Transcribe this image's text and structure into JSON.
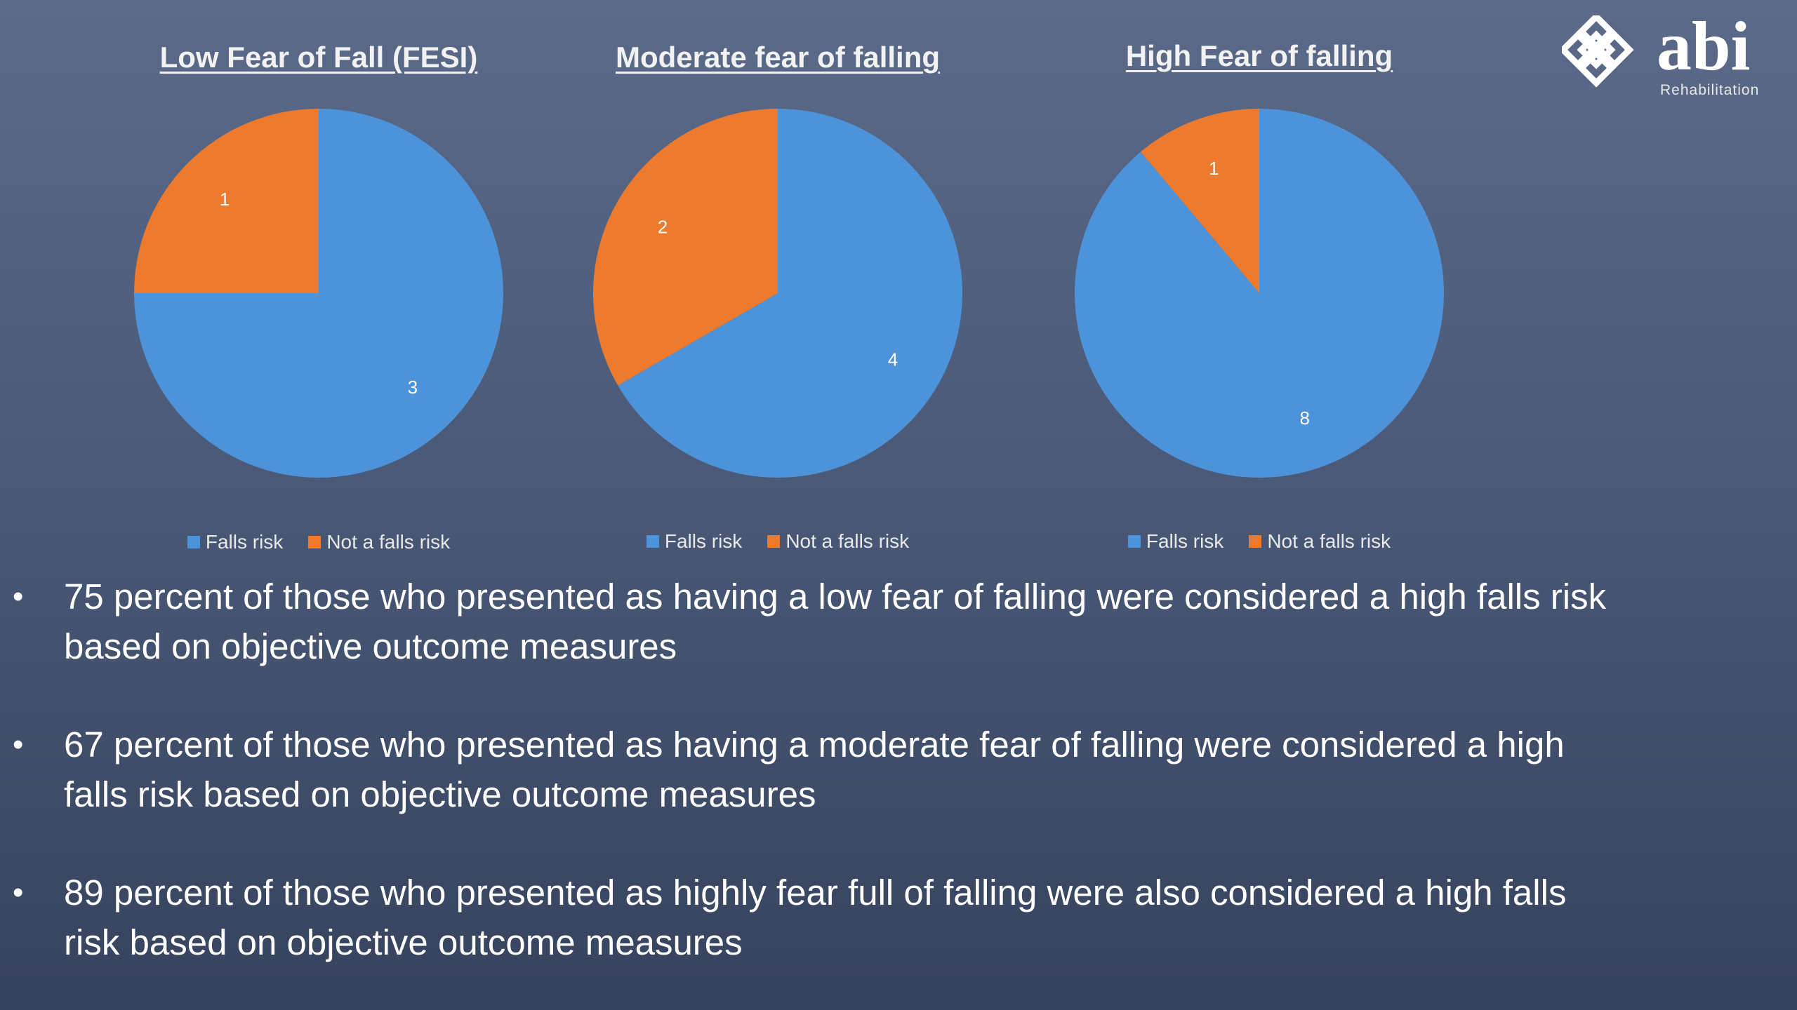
{
  "logo": {
    "word": "abi",
    "subtitle": "Rehabilitation"
  },
  "colors": {
    "falls_risk": "#4d93d9",
    "not_falls_risk": "#ee7a2e"
  },
  "chart_data": [
    {
      "type": "pie",
      "title": "Low Fear of Fall  (FESI)",
      "categories": [
        "Falls risk",
        "Not a falls risk"
      ],
      "values": [
        3,
        1
      ],
      "legend": "bottom"
    },
    {
      "type": "pie",
      "title": "Moderate fear of falling",
      "categories": [
        "Falls risk",
        "Not a falls risk"
      ],
      "values": [
        4,
        2
      ],
      "legend": "bottom"
    },
    {
      "type": "pie",
      "title": "High Fear of falling",
      "categories": [
        "Falls risk",
        "Not a falls risk"
      ],
      "values": [
        8,
        1
      ],
      "legend": "bottom"
    }
  ],
  "bullets": [
    "75 percent of those who presented as having a low fear of falling were considered a high falls risk based on objective outcome measures",
    "67 percent of those who presented as having a moderate fear of falling were considered a high falls risk based on objective outcome measures",
    "89 percent of those who presented as highly fear full of falling were also considered a high falls risk based on objective outcome measures"
  ],
  "bullet_symbol": "•"
}
